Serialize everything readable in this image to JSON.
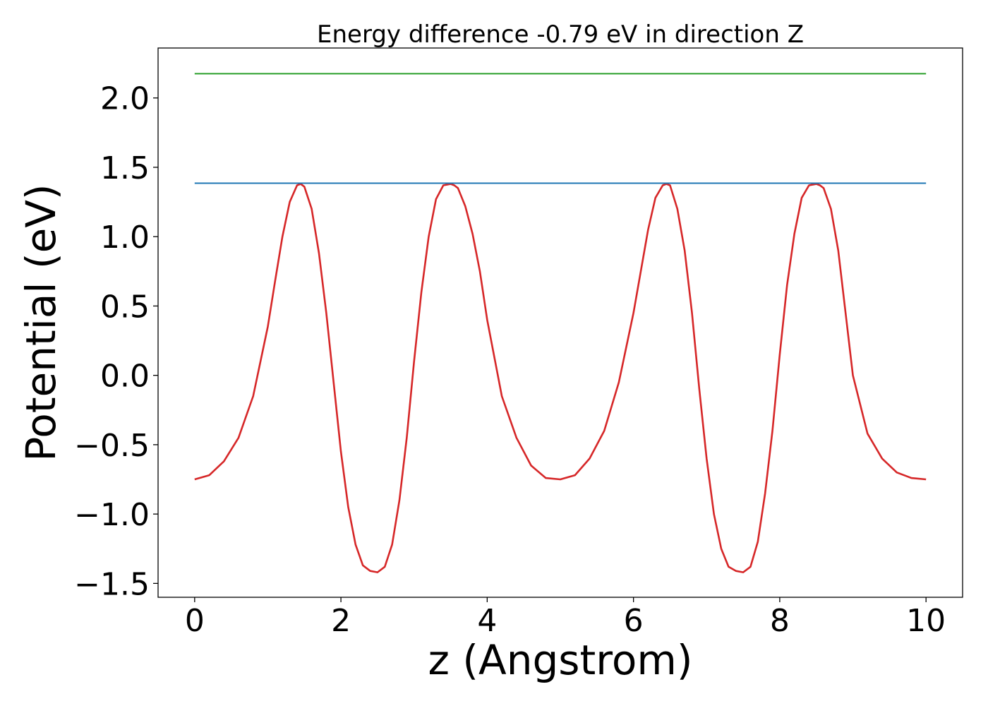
{
  "chart_data": {
    "type": "line",
    "title": "Energy difference -0.79 eV in direction Z",
    "xlabel": "z (Angstrom)",
    "ylabel": "Potential (eV)",
    "xlim": [
      -0.5,
      10.5
    ],
    "ylim": [
      -1.6,
      2.36
    ],
    "x_ticks": [
      0,
      2,
      4,
      6,
      8,
      10
    ],
    "x_tick_labels": [
      "0",
      "2",
      "4",
      "6",
      "8",
      "10"
    ],
    "y_ticks": [
      -1.5,
      -1.0,
      -0.5,
      0.0,
      0.5,
      1.0,
      1.5,
      2.0
    ],
    "y_tick_labels": [
      "−1.5",
      "−1.0",
      "−0.5",
      "0.0",
      "0.5",
      "1.0",
      "1.5",
      "2.0"
    ],
    "grid": false,
    "legend": "none",
    "series": [
      {
        "color": "#d62728",
        "x": [
          0.0,
          0.2,
          0.4,
          0.6,
          0.8,
          1.0,
          1.1,
          1.2,
          1.3,
          1.4,
          1.45,
          1.5,
          1.6,
          1.7,
          1.8,
          1.9,
          2.0,
          2.1,
          2.2,
          2.3,
          2.4,
          2.5,
          2.6,
          2.7,
          2.8,
          2.9,
          3.0,
          3.1,
          3.2,
          3.3,
          3.4,
          3.5,
          3.55,
          3.6,
          3.7,
          3.8,
          3.9,
          4.0,
          4.2,
          4.4,
          4.6,
          4.8,
          5.0,
          5.2,
          5.4,
          5.6,
          5.8,
          6.0,
          6.1,
          6.2,
          6.3,
          6.4,
          6.45,
          6.5,
          6.6,
          6.7,
          6.8,
          6.9,
          7.0,
          7.1,
          7.2,
          7.3,
          7.4,
          7.5,
          7.6,
          7.7,
          7.8,
          7.9,
          8.0,
          8.1,
          8.2,
          8.3,
          8.4,
          8.5,
          8.55,
          8.6,
          8.7,
          8.8,
          8.9,
          9.0,
          9.2,
          9.4,
          9.6,
          9.8,
          10.0
        ],
        "y": [
          -0.75,
          -0.72,
          -0.62,
          -0.45,
          -0.15,
          0.35,
          0.68,
          1.0,
          1.25,
          1.37,
          1.38,
          1.36,
          1.2,
          0.88,
          0.45,
          -0.05,
          -0.55,
          -0.95,
          -1.22,
          -1.37,
          -1.41,
          -1.42,
          -1.38,
          -1.22,
          -0.9,
          -0.45,
          0.1,
          0.6,
          1.0,
          1.27,
          1.37,
          1.38,
          1.37,
          1.35,
          1.22,
          1.02,
          0.75,
          0.4,
          -0.15,
          -0.45,
          -0.65,
          -0.74,
          -0.75,
          -0.72,
          -0.6,
          -0.4,
          -0.05,
          0.45,
          0.75,
          1.05,
          1.28,
          1.37,
          1.38,
          1.37,
          1.2,
          0.9,
          0.45,
          -0.1,
          -0.6,
          -1.0,
          -1.25,
          -1.38,
          -1.41,
          -1.42,
          -1.38,
          -1.2,
          -0.85,
          -0.4,
          0.15,
          0.65,
          1.02,
          1.28,
          1.37,
          1.38,
          1.37,
          1.35,
          1.2,
          0.9,
          0.45,
          0.0,
          -0.42,
          -0.6,
          -0.7,
          -0.74,
          -0.75
        ]
      },
      {
        "color": "#1f77b4",
        "x": [
          0,
          10
        ],
        "y": [
          1.385,
          1.385
        ]
      },
      {
        "color": "#2ca02c",
        "x": [
          0,
          10
        ],
        "y": [
          2.175,
          2.175
        ]
      }
    ]
  }
}
